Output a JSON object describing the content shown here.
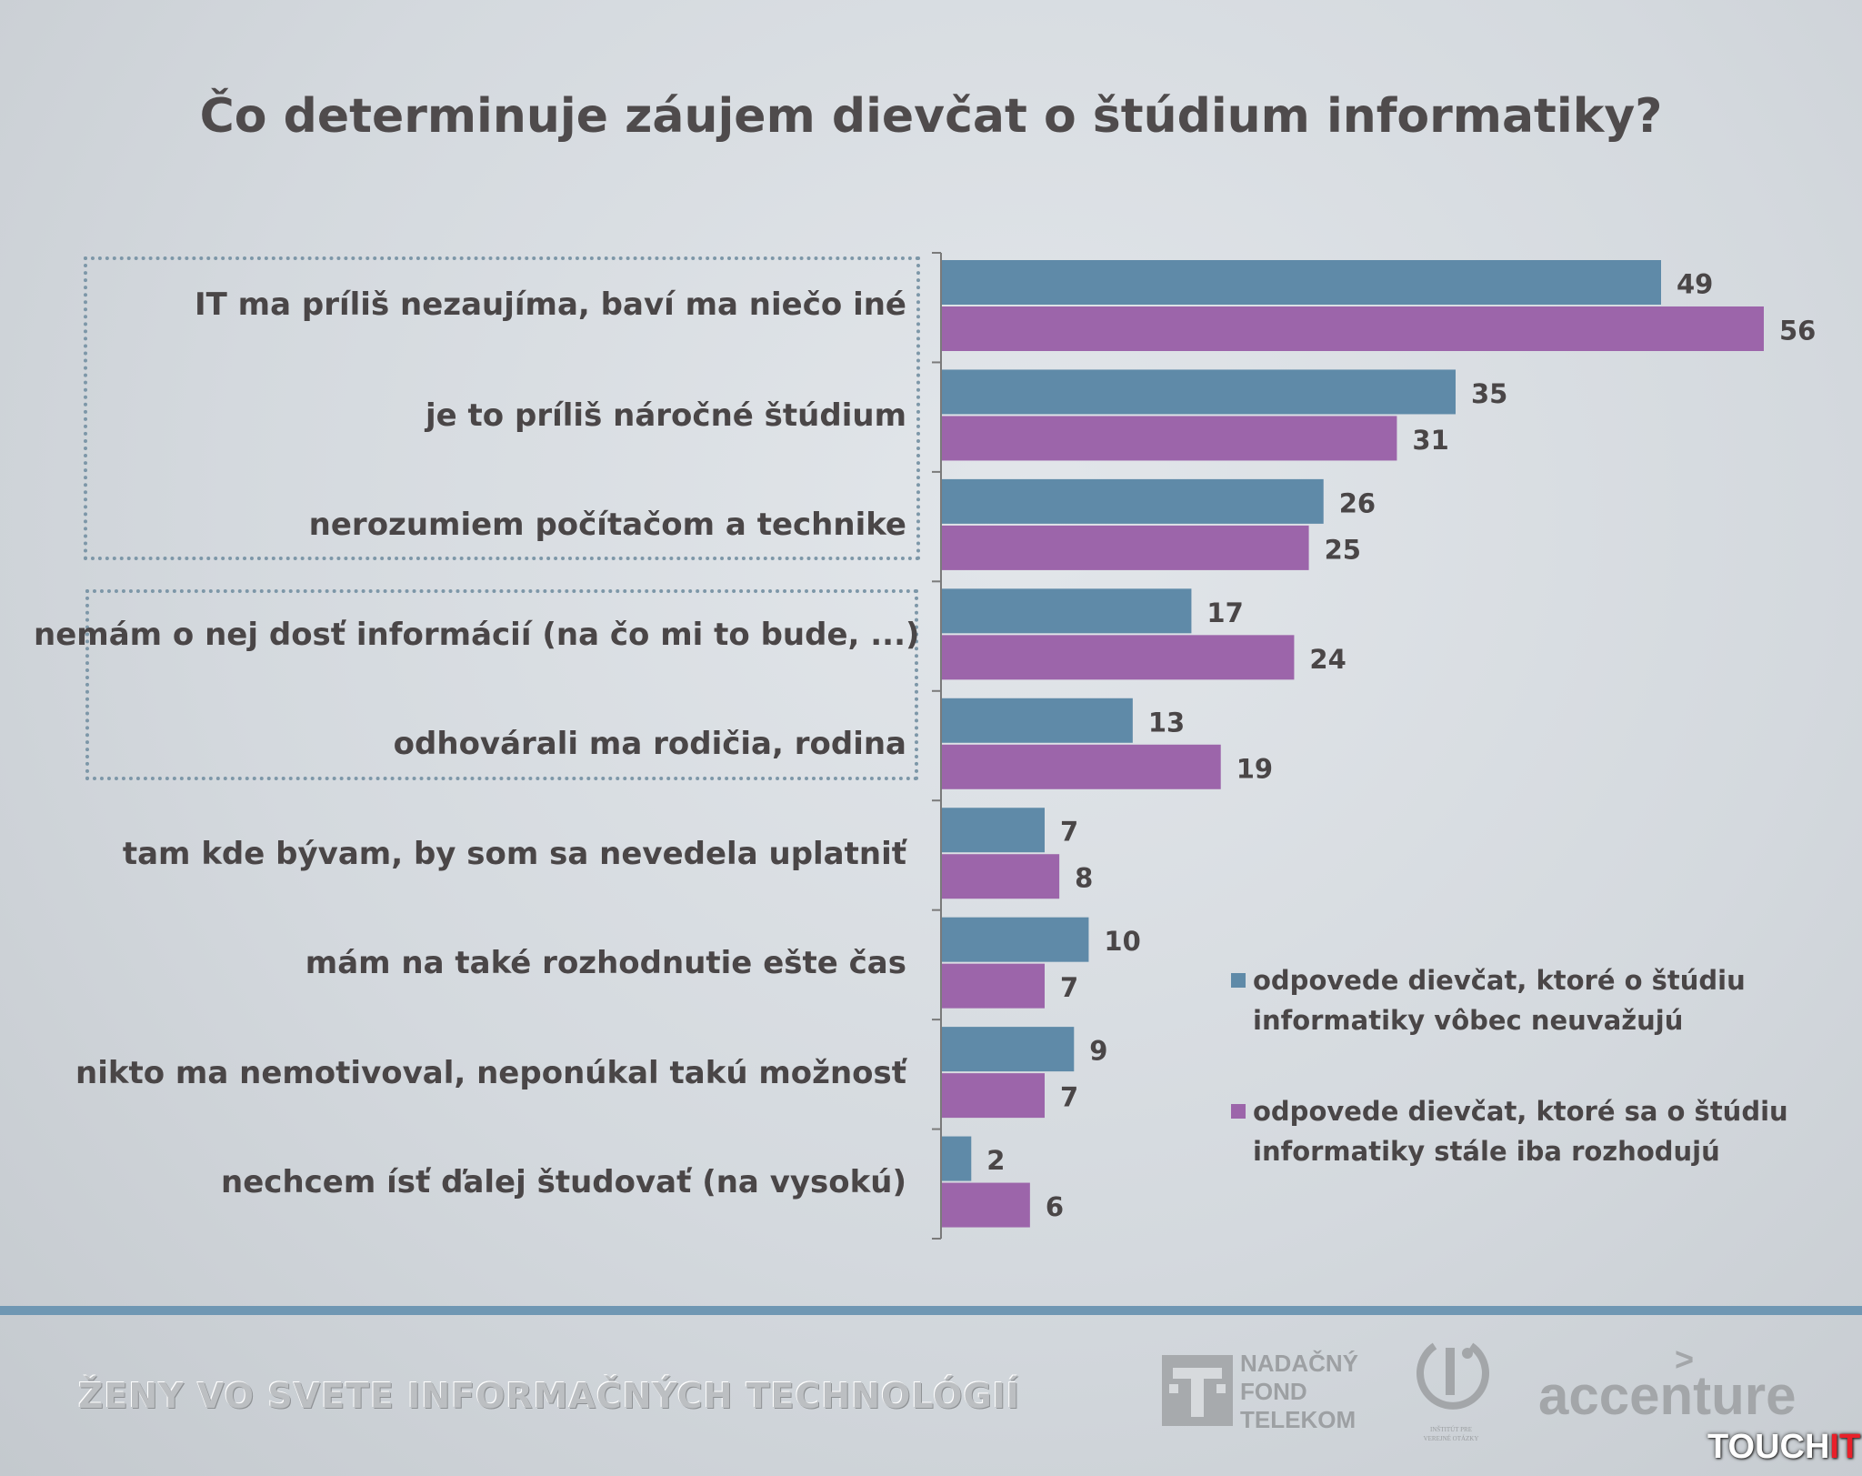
{
  "title": "Čo determinuje záujem dievčat o štúdium informatiky?",
  "chart_data": {
    "type": "bar",
    "orientation": "horizontal",
    "title": "Čo determinuje záujem dievčat o štúdium informatiky?",
    "categories": [
      "IT ma príliš nezaujíma, baví ma niečo iné",
      "je to príliš náročné štúdium",
      "nerozumiem počítačom a technike",
      "nemám o nej dosť informácií (na čo mi to bude, ...)",
      "odhovárali ma rodičia, rodina",
      "tam kde bývam, by som sa nevedela uplatniť",
      "mám na také rozhodnutie ešte čas",
      "nikto ma nemotivoval, neponúkal takú možnosť",
      "nechcem ísť ďalej študovať (na vysokú)"
    ],
    "series": [
      {
        "name": "odpovede dievčat, ktoré o štúdiu informatiky vôbec neuvažujú",
        "color": "#5f8aa8",
        "values": [
          49,
          35,
          26,
          17,
          13,
          7,
          10,
          9,
          2
        ]
      },
      {
        "name": "odpovede dievčat, ktoré sa o štúdiu informatiky stále iba rozhodujú",
        "color": "#9c65aa",
        "values": [
          56,
          31,
          25,
          24,
          19,
          8,
          7,
          7,
          6
        ]
      }
    ],
    "xlim": [
      0,
      60
    ],
    "data_labels": true,
    "grid": false,
    "legend_position": "right",
    "highlight_groups": [
      [
        0,
        2
      ],
      [
        3,
        4
      ]
    ]
  },
  "legend": {
    "series1_line1": "odpovede dievčat, ktoré o štúdiu",
    "series1_line2": "informatiky vôbec neuvažujú",
    "series2_line1": "odpovede dievčat, ktoré sa o štúdiu",
    "series2_line2": "informatiky stále iba rozhodujú"
  },
  "footer": {
    "project_title": "ŽENY VO SVETE INFORMAČNÝCH TECHNOLÓGIÍ",
    "telekom_line1": "NADAČNÝ",
    "telekom_line2": "FOND",
    "telekom_line3": "TELEKOM",
    "ivo_text_line1": "INŠTITÚT PRE",
    "ivo_text_line2": "VEREJNÉ OTÁZKY",
    "accenture": "accenture",
    "accenture_mark": ">",
    "watermark_main": "TOUCH",
    "watermark_accent": "IT"
  }
}
